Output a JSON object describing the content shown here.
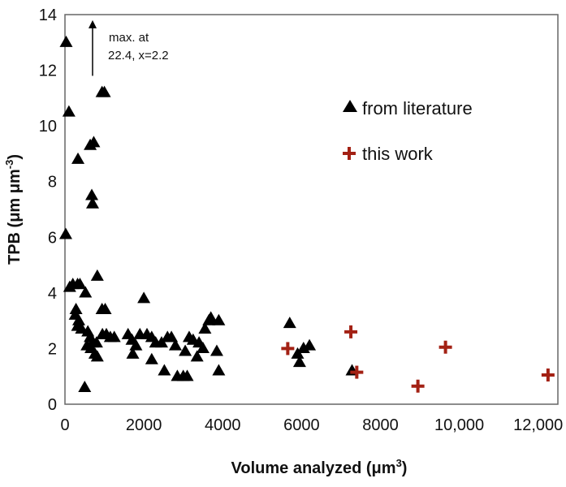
{
  "chart_data": {
    "type": "scatter",
    "xlabel": "Volume analyzed (μm",
    "xlabel_sup": "3",
    "xlabel_end": ")",
    "ylabel": "TPB (μm μm",
    "ylabel_sup": "-3",
    "ylabel_end": ")",
    "xlim": [
      0,
      12500
    ],
    "ylim": [
      0,
      14
    ],
    "x_ticks": [
      0,
      2000,
      4000,
      6000,
      8000,
      10000,
      12000
    ],
    "x_tick_labels": [
      "0",
      "2000",
      "4000",
      "6000",
      "8000",
      "10,000",
      "12,000"
    ],
    "y_ticks": [
      0,
      2,
      4,
      6,
      8,
      10,
      12,
      14
    ],
    "y_tick_labels": [
      "0",
      "2",
      "4",
      "6",
      "8",
      "10",
      "12",
      "14"
    ],
    "grid": false,
    "legend_position": "upper-right",
    "annotation": {
      "line1": "max. at",
      "line2": "22.4, x=2.2",
      "arrow_x": 700,
      "arrow_y_from": 11.8,
      "arrow_y_to": 13.8
    },
    "series": [
      {
        "name": "from literature",
        "marker": "triangle",
        "color": "#000000",
        "points": [
          [
            30,
            13.0
          ],
          [
            100,
            10.5
          ],
          [
            20,
            6.1
          ],
          [
            200,
            4.3
          ],
          [
            120,
            4.2
          ],
          [
            320,
            4.3
          ],
          [
            280,
            3.4
          ],
          [
            260,
            3.2
          ],
          [
            350,
            3.0
          ],
          [
            320,
            2.8
          ],
          [
            420,
            2.7
          ],
          [
            380,
            4.3
          ],
          [
            520,
            4.0
          ],
          [
            330,
            8.8
          ],
          [
            640,
            9.3
          ],
          [
            730,
            9.4
          ],
          [
            940,
            11.2
          ],
          [
            1000,
            11.2
          ],
          [
            680,
            7.5
          ],
          [
            700,
            7.2
          ],
          [
            820,
            4.6
          ],
          [
            940,
            3.4
          ],
          [
            1020,
            3.4
          ],
          [
            580,
            2.6
          ],
          [
            640,
            2.4
          ],
          [
            700,
            2.2
          ],
          [
            560,
            2.1
          ],
          [
            800,
            2.2
          ],
          [
            660,
            2.0
          ],
          [
            760,
            1.8
          ],
          [
            820,
            1.7
          ],
          [
            500,
            0.6
          ],
          [
            950,
            2.5
          ],
          [
            1050,
            2.5
          ],
          [
            1150,
            2.4
          ],
          [
            1250,
            2.4
          ],
          [
            1600,
            2.5
          ],
          [
            1700,
            2.3
          ],
          [
            1720,
            1.8
          ],
          [
            1800,
            2.1
          ],
          [
            1900,
            2.5
          ],
          [
            2000,
            3.8
          ],
          [
            2080,
            2.5
          ],
          [
            2200,
            2.4
          ],
          [
            2300,
            2.2
          ],
          [
            2200,
            1.6
          ],
          [
            2450,
            2.2
          ],
          [
            2520,
            1.2
          ],
          [
            2600,
            2.4
          ],
          [
            2700,
            2.4
          ],
          [
            2800,
            2.1
          ],
          [
            2850,
            1.0
          ],
          [
            3000,
            1.0
          ],
          [
            3050,
            1.9
          ],
          [
            3100,
            1.0
          ],
          [
            3150,
            2.4
          ],
          [
            3250,
            2.3
          ],
          [
            3350,
            1.7
          ],
          [
            3400,
            2.2
          ],
          [
            3500,
            2.0
          ],
          [
            3550,
            2.7
          ],
          [
            3650,
            3.0
          ],
          [
            3700,
            3.1
          ],
          [
            3850,
            1.9
          ],
          [
            3900,
            3.0
          ],
          [
            3900,
            1.2
          ],
          [
            5700,
            2.9
          ],
          [
            5900,
            1.8
          ],
          [
            5950,
            1.5
          ],
          [
            6050,
            2.0
          ],
          [
            6200,
            2.1
          ],
          [
            7280,
            1.2
          ]
        ]
      },
      {
        "name": "this work",
        "marker": "plus",
        "color": "#a32114",
        "points": [
          [
            5650,
            2.0
          ],
          [
            7250,
            2.6
          ],
          [
            7400,
            1.15
          ],
          [
            8950,
            0.65
          ],
          [
            9650,
            2.05
          ],
          [
            12250,
            1.05
          ]
        ]
      }
    ]
  }
}
